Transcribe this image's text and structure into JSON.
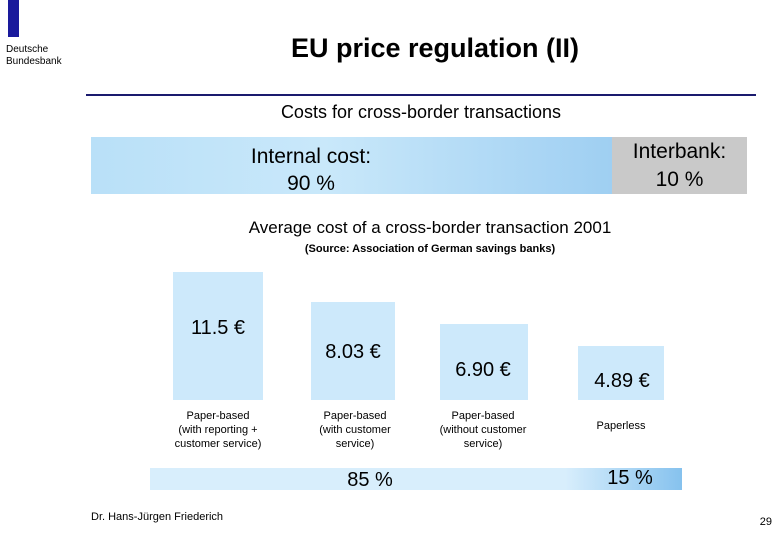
{
  "header": {
    "org_line1": "Deutsche",
    "org_line2": "Bundesbank",
    "title": "EU price regulation (II)",
    "subtitle": "Costs for cross-border transactions"
  },
  "cost_split": {
    "internal_line1": "Internal cost:",
    "internal_line2": "90 %",
    "interbank_line1": "Interbank:",
    "interbank_line2": "10 %"
  },
  "average_cost": {
    "title": "Average cost of a cross-border transaction 2001",
    "source": "(Source: Association of German savings banks)",
    "items": [
      {
        "value": "11.5 €",
        "label_lines": [
          "Paper-based",
          "(with reporting +",
          "customer service)"
        ]
      },
      {
        "value": "8.03 €",
        "label_lines": [
          "Paper-based",
          "(with customer",
          "service)"
        ]
      },
      {
        "value": "6.90 €",
        "label_lines": [
          "Paper-based",
          "(without customer",
          "service)"
        ]
      },
      {
        "value": "4.89 €",
        "label_lines": [
          "Paperless"
        ]
      }
    ],
    "share_paper": "85 %",
    "share_paperless": "15 %"
  },
  "footer": {
    "author": "Dr. Hans-Jürgen Friederich",
    "page": "29"
  },
  "colors": {
    "accent": "#1a1a9c",
    "bar_fill": "#cde9fb",
    "internal_fill": "#b9e0f8",
    "interbank_fill": "#c9c9c9"
  }
}
